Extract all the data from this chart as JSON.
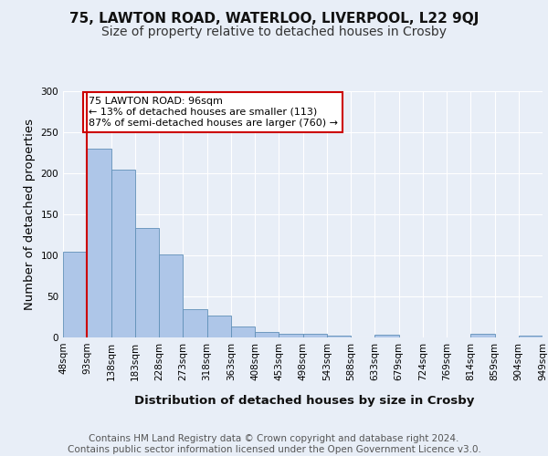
{
  "title_line1": "75, LAWTON ROAD, WATERLOO, LIVERPOOL, L22 9QJ",
  "title_line2": "Size of property relative to detached houses in Crosby",
  "xlabel": "Distribution of detached houses by size in Crosby",
  "ylabel": "Number of detached properties",
  "bar_values": [
    105,
    230,
    205,
    133,
    101,
    35,
    27,
    13,
    7,
    5,
    4,
    2,
    0,
    3,
    0,
    0,
    0,
    5,
    0,
    2
  ],
  "bin_labels": [
    "48sqm",
    "93sqm",
    "138sqm",
    "183sqm",
    "228sqm",
    "273sqm",
    "318sqm",
    "363sqm",
    "408sqm",
    "453sqm",
    "498sqm",
    "543sqm",
    "588sqm",
    "633sqm",
    "679sqm",
    "724sqm",
    "769sqm",
    "814sqm",
    "859sqm",
    "904sqm",
    "949sqm"
  ],
  "bar_color": "#aec6e8",
  "bar_edge_color": "#6090b8",
  "property_line_x": 1,
  "property_line_color": "#cc0000",
  "annotation_text": "75 LAWTON ROAD: 96sqm\n← 13% of detached houses are smaller (113)\n87% of semi-detached houses are larger (760) →",
  "annotation_box_color": "#ffffff",
  "annotation_box_edge": "#cc0000",
  "ylim": [
    0,
    300
  ],
  "yticks": [
    0,
    50,
    100,
    150,
    200,
    250,
    300
  ],
  "footer_text": "Contains HM Land Registry data © Crown copyright and database right 2024.\nContains public sector information licensed under the Open Government Licence v3.0.",
  "background_color": "#e8eef7",
  "plot_background_color": "#e8eef7",
  "grid_color": "#ffffff",
  "title_fontsize": 11,
  "subtitle_fontsize": 10,
  "axis_label_fontsize": 9.5,
  "tick_fontsize": 7.5,
  "footer_fontsize": 7.5
}
